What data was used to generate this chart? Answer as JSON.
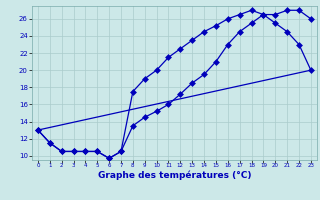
{
  "xlabel": "Graphe des températures (°C)",
  "bg_color": "#cce8e8",
  "line_color": "#0000bb",
  "grid_color": "#aacccc",
  "xlim": [
    -0.5,
    23.5
  ],
  "ylim": [
    9.5,
    27.5
  ],
  "xticks": [
    0,
    1,
    2,
    3,
    4,
    5,
    6,
    7,
    8,
    9,
    10,
    11,
    12,
    13,
    14,
    15,
    16,
    17,
    18,
    19,
    20,
    21,
    22,
    23
  ],
  "yticks": [
    10,
    12,
    14,
    16,
    18,
    20,
    22,
    24,
    26
  ],
  "line1_x": [
    0,
    1,
    2,
    3,
    4,
    5,
    6,
    7,
    8,
    9,
    10,
    11,
    12,
    13,
    14,
    15,
    16,
    17,
    18,
    19,
    20,
    21,
    22,
    23
  ],
  "line1_y": [
    13,
    11.5,
    10.5,
    10.5,
    10.5,
    10.5,
    9.7,
    10.5,
    13.5,
    14.5,
    15.2,
    16,
    17.2,
    18.5,
    19.5,
    21,
    23,
    24.5,
    25.5,
    26.5,
    26.5,
    27,
    27,
    26
  ],
  "line2_x": [
    0,
    1,
    2,
    3,
    4,
    5,
    6,
    7,
    8,
    9,
    10,
    11,
    12,
    13,
    14,
    15,
    16,
    17,
    18,
    19,
    20,
    21,
    22,
    23
  ],
  "line2_y": [
    13,
    11.5,
    10.5,
    10.5,
    10.5,
    10.5,
    9.7,
    10.5,
    17.5,
    19,
    20,
    21.5,
    22.5,
    23.5,
    24.5,
    25.2,
    26,
    26.5,
    27,
    26.5,
    25.5,
    24.5,
    23,
    20
  ],
  "line3_x": [
    0,
    23
  ],
  "line3_y": [
    13,
    20
  ]
}
